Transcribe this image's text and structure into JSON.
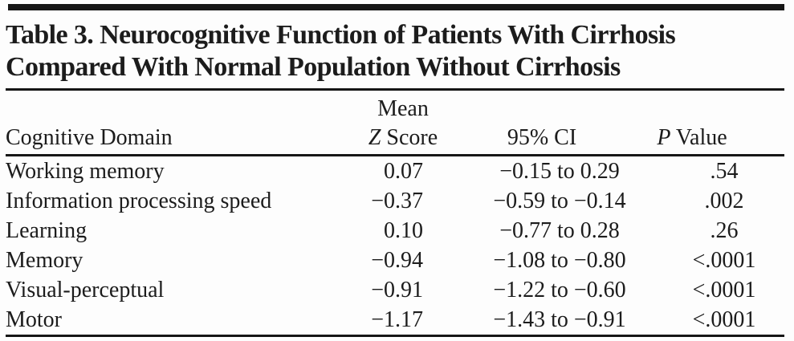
{
  "theme": {
    "ink": "#1c1c1c",
    "rule": "#161616",
    "paper": "#fdfdfd"
  },
  "table": {
    "title_line1": "Table 3. Neurocognitive Function of Patients With Cirrhosis",
    "title_line2": "Compared With Normal Population Without Cirrhosis",
    "columns": {
      "domain": "Cognitive Domain",
      "zscore_line1": "Mean",
      "zscore_italic": "Z",
      "zscore_rest": " Score",
      "ci": "95% CI",
      "p_italic": "P",
      "p_rest": " Value"
    },
    "rows": [
      {
        "domain": "Working memory",
        "z": "0.07",
        "ci": "−0.15 to 0.29",
        "p": ".54"
      },
      {
        "domain": "Information processing speed",
        "z": "−0.37",
        "ci": "−0.59 to −0.14",
        "p": ".002"
      },
      {
        "domain": "Learning",
        "z": "0.10",
        "ci": "−0.77 to 0.28",
        "p": ".26"
      },
      {
        "domain": "Memory",
        "z": "−0.94",
        "ci": "−1.08 to −0.80",
        "p": "<.0001"
      },
      {
        "domain": "Visual-perceptual",
        "z": "−0.91",
        "ci": "−1.22 to −0.60",
        "p": "<.0001"
      },
      {
        "domain": "Motor",
        "z": "−1.17",
        "ci": "−1.43 to −0.91",
        "p": "<.0001"
      }
    ]
  },
  "chart_data": {
    "type": "table",
    "title": "Table 3. Neurocognitive Function of Patients With Cirrhosis Compared With Normal Population Without Cirrhosis",
    "columns": [
      "Cognitive Domain",
      "Mean Z Score",
      "95% CI",
      "P Value"
    ],
    "rows": [
      [
        "Working memory",
        "0.07",
        "−0.15 to 0.29",
        ".54"
      ],
      [
        "Information processing speed",
        "−0.37",
        "−0.59 to −0.14",
        ".002"
      ],
      [
        "Learning",
        "0.10",
        "−0.77 to 0.28",
        ".26"
      ],
      [
        "Memory",
        "−0.94",
        "−1.08 to −0.80",
        "<.0001"
      ],
      [
        "Visual-perceptual",
        "−0.91",
        "−1.22 to −0.60",
        "<.0001"
      ],
      [
        "Motor",
        "−1.17",
        "−1.43 to −0.91",
        "<.0001"
      ]
    ]
  }
}
